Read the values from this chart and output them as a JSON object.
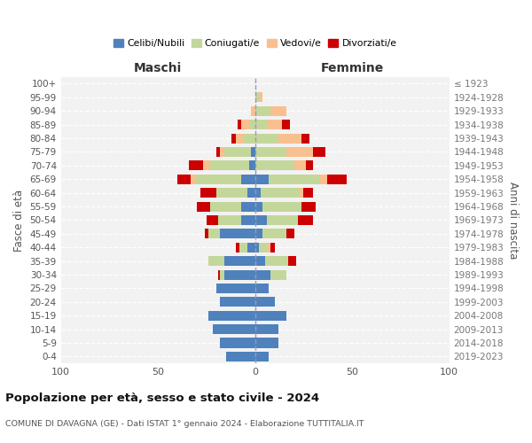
{
  "age_groups": [
    "0-4",
    "5-9",
    "10-14",
    "15-19",
    "20-24",
    "25-29",
    "30-34",
    "35-39",
    "40-44",
    "45-49",
    "50-54",
    "55-59",
    "60-64",
    "65-69",
    "70-74",
    "75-79",
    "80-84",
    "85-89",
    "90-94",
    "95-99",
    "100+"
  ],
  "birth_years": [
    "2019-2023",
    "2014-2018",
    "2009-2013",
    "2004-2008",
    "1999-2003",
    "1994-1998",
    "1989-1993",
    "1984-1988",
    "1979-1983",
    "1974-1978",
    "1969-1973",
    "1964-1968",
    "1959-1963",
    "1954-1958",
    "1949-1953",
    "1944-1948",
    "1939-1943",
    "1934-1938",
    "1929-1933",
    "1924-1928",
    "≤ 1923"
  ],
  "colors": {
    "celibe": "#4f81bd",
    "coniugato": "#c4d79b",
    "vedovo": "#fabf8f",
    "divorziato": "#cc0000"
  },
  "maschi": {
    "celibe": [
      15,
      18,
      22,
      24,
      18,
      20,
      16,
      16,
      4,
      18,
      7,
      7,
      4,
      7,
      3,
      2,
      0,
      0,
      0,
      0,
      0
    ],
    "coniugato": [
      0,
      0,
      0,
      0,
      0,
      0,
      2,
      8,
      4,
      6,
      12,
      16,
      16,
      24,
      20,
      14,
      6,
      3,
      0,
      0,
      0
    ],
    "vedovo": [
      0,
      0,
      0,
      0,
      0,
      0,
      0,
      0,
      0,
      0,
      0,
      0,
      0,
      2,
      4,
      2,
      4,
      4,
      2,
      0,
      0
    ],
    "divorziato": [
      0,
      0,
      0,
      0,
      0,
      0,
      1,
      0,
      2,
      2,
      6,
      7,
      8,
      7,
      7,
      2,
      2,
      2,
      0,
      0,
      0
    ]
  },
  "femmine": {
    "nubile": [
      7,
      12,
      12,
      16,
      10,
      7,
      8,
      5,
      2,
      4,
      6,
      4,
      3,
      7,
      0,
      0,
      0,
      0,
      0,
      0,
      0
    ],
    "coniugata": [
      0,
      0,
      0,
      0,
      0,
      0,
      8,
      12,
      4,
      12,
      16,
      20,
      20,
      26,
      20,
      16,
      12,
      6,
      8,
      2,
      0
    ],
    "vedova": [
      0,
      0,
      0,
      0,
      0,
      0,
      0,
      0,
      2,
      0,
      0,
      0,
      2,
      4,
      6,
      14,
      12,
      8,
      8,
      2,
      0
    ],
    "divorziata": [
      0,
      0,
      0,
      0,
      0,
      0,
      0,
      4,
      2,
      4,
      8,
      7,
      5,
      10,
      4,
      6,
      4,
      4,
      0,
      0,
      0
    ]
  },
  "xlim": 100,
  "title": "Popolazione per età, sesso e stato civile - 2024",
  "subtitle": "COMUNE DI DAVAGNA (GE) - Dati ISTAT 1° gennaio 2024 - Elaborazione TUTTITALIA.IT",
  "ylabel_left": "Fasce di età",
  "ylabel_right": "Anni di nascita",
  "xlabel_left": "Maschi",
  "xlabel_right": "Femmine",
  "bg_color": "#f2f2f2",
  "bar_height": 0.72
}
